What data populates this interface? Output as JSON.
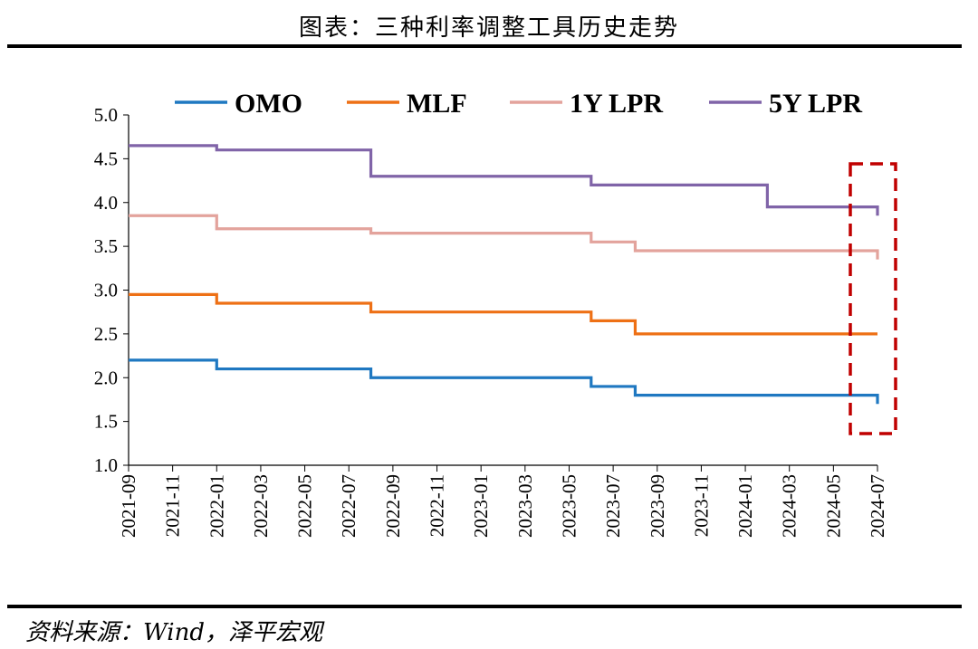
{
  "title": "图表：三种利率调整工具历史走势",
  "source": "资料来源：Wind，泽平宏观",
  "chart_data": {
    "type": "line",
    "step": true,
    "title": "图表：三种利率调整工具历史走势",
    "xlabel": "",
    "ylabel": "",
    "ylim": [
      1.0,
      5.0
    ],
    "yticks": [
      "1.0",
      "1.5",
      "2.0",
      "2.5",
      "3.0",
      "3.5",
      "4.0",
      "4.5",
      "5.0"
    ],
    "xticks": [
      "2021-09",
      "2021-11",
      "2022-01",
      "2022-03",
      "2022-05",
      "2022-07",
      "2022-09",
      "2022-11",
      "2023-01",
      "2023-03",
      "2023-05",
      "2023-07",
      "2023-09",
      "2023-11",
      "2024-01",
      "2024-03",
      "2024-05",
      "2024-07"
    ],
    "legend_position": "top",
    "series": [
      {
        "name": "OMO",
        "color": "#1f78c1",
        "points": [
          [
            "2021-09",
            2.2
          ],
          [
            "2022-01",
            2.1
          ],
          [
            "2022-08",
            2.0
          ],
          [
            "2023-06",
            1.9
          ],
          [
            "2023-08",
            1.8
          ],
          [
            "2024-07",
            1.7
          ]
        ]
      },
      {
        "name": "MLF",
        "color": "#ee7015",
        "points": [
          [
            "2021-09",
            2.95
          ],
          [
            "2022-01",
            2.85
          ],
          [
            "2022-08",
            2.75
          ],
          [
            "2023-06",
            2.65
          ],
          [
            "2023-08",
            2.5
          ],
          [
            "2024-07",
            2.5
          ]
        ]
      },
      {
        "name": "1Y LPR",
        "color": "#e3a39c",
        "points": [
          [
            "2021-09",
            3.85
          ],
          [
            "2022-01",
            3.7
          ],
          [
            "2022-08",
            3.65
          ],
          [
            "2023-06",
            3.55
          ],
          [
            "2023-08",
            3.45
          ],
          [
            "2024-07",
            3.35
          ]
        ]
      },
      {
        "name": "5Y LPR",
        "color": "#8064a8",
        "points": [
          [
            "2021-09",
            4.65
          ],
          [
            "2022-01",
            4.6
          ],
          [
            "2022-08",
            4.3
          ],
          [
            "2023-06",
            4.2
          ],
          [
            "2024-02",
            3.95
          ],
          [
            "2024-07",
            3.85
          ]
        ]
      }
    ],
    "annotation": {
      "type": "dashed-box",
      "color": "#c00000",
      "from": "2024-06",
      "to": "2024-07"
    }
  }
}
